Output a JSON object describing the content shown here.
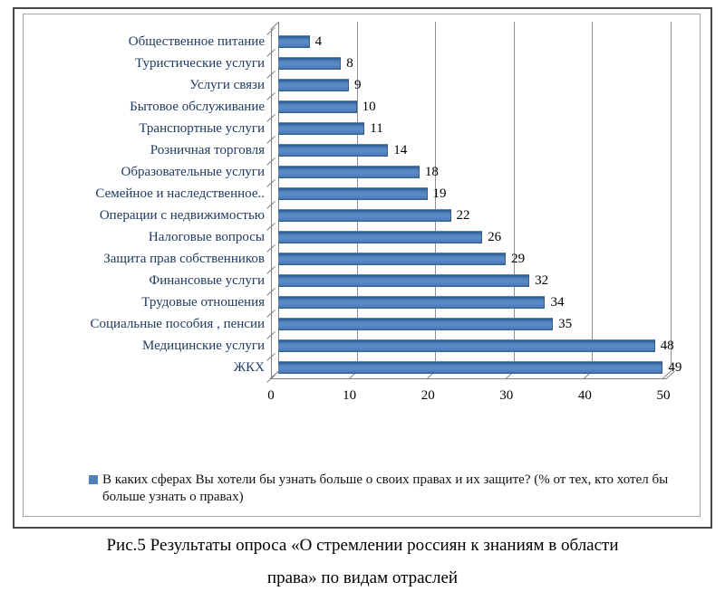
{
  "chart_data": {
    "type": "bar",
    "orientation": "horizontal",
    "style": "3d-beveled-bars",
    "categories": [
      "Общественное питание",
      "Туристические услуги",
      "Услуги связи",
      "Бытовое обслуживание",
      "Транспортные услуги",
      "Розничная торговля",
      "Образовательные услуги",
      "Семейное и наследственное..",
      "Операции с недвижимостью",
      "Налоговые вопросы",
      "Защита прав собственников",
      "Финансовые услуги",
      "Трудовые отношения",
      "Социальные пособия , пенсии",
      "Медицинские услуги",
      "ЖКХ"
    ],
    "values": [
      4,
      8,
      9,
      10,
      11,
      14,
      18,
      19,
      22,
      26,
      29,
      32,
      34,
      35,
      48,
      49
    ],
    "xlim": [
      0,
      50
    ],
    "x_ticks": [
      "0",
      "10",
      "20",
      "30",
      "40",
      "50"
    ],
    "grid": "vertical-gridlines-on",
    "data_labels": "at-bar-end",
    "legend_position": "bottom-left",
    "legend_label": "В каких сферах Вы хотели бы узнать больше о своих правах и их защите? (% от тех, кто хотел бы больше узнать о правах)",
    "bar_color": "#4f81bd",
    "bar_top_edge_color": "#2e5888",
    "gridline_color": "#8f8f8f",
    "axis_color": "#7f7f7f",
    "category_label_color": "#1f3b63",
    "value_label_color": "#000000"
  },
  "figure": {
    "caption_line1": "Рис.5 Результаты опроса  «О стремлении россиян к знаниям в области",
    "caption_line2": "права» по видам отраслей"
  }
}
